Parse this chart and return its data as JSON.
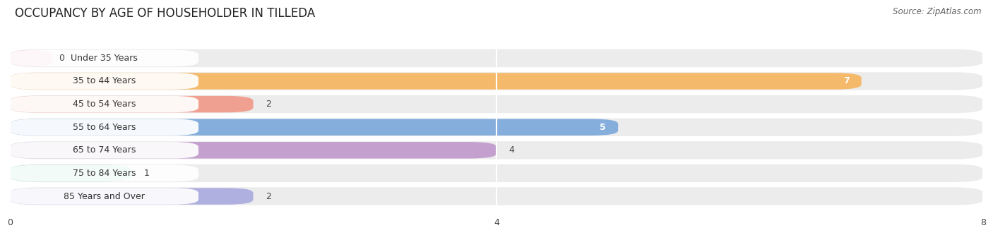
{
  "title": "OCCUPANCY BY AGE OF HOUSEHOLDER IN TILLEDA",
  "source": "Source: ZipAtlas.com",
  "categories": [
    "Under 35 Years",
    "35 to 44 Years",
    "45 to 54 Years",
    "55 to 64 Years",
    "65 to 74 Years",
    "75 to 84 Years",
    "85 Years and Over"
  ],
  "values": [
    0,
    7,
    2,
    5,
    4,
    1,
    2
  ],
  "colors": [
    "#F4A7BC",
    "#F5B96B",
    "#F0A090",
    "#85AEDD",
    "#C4A0CF",
    "#72CFBF",
    "#B0B0E0"
  ],
  "xlim": [
    0,
    8
  ],
  "xticks": [
    0,
    4,
    8
  ],
  "background_color": "#f7f7f7",
  "bar_bg_color": "#ececec",
  "row_bg_color": "#f0f0f0",
  "title_fontsize": 12,
  "label_fontsize": 9,
  "value_fontsize": 9,
  "source_fontsize": 8.5
}
